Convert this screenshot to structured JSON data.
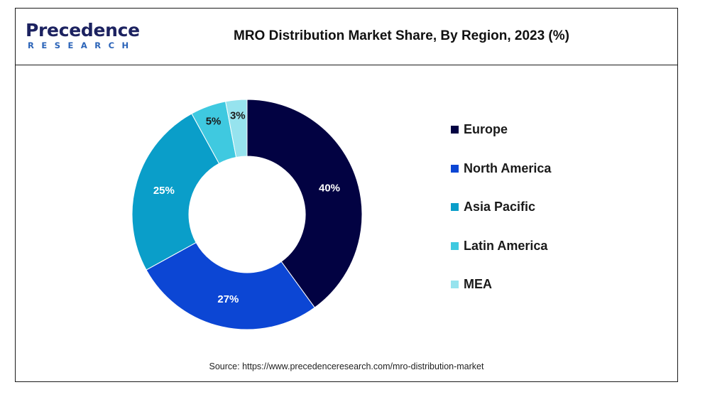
{
  "brand": {
    "logo_word": "Precedence",
    "logo_sub": "RESEARCH"
  },
  "chart_data": {
    "type": "pie",
    "title": "MRO Distribution Market Share, By Region, 2023 (%)",
    "categories": [
      "Europe",
      "North America",
      "Asia Pacific",
      "Latin America",
      "MEA"
    ],
    "values": [
      40,
      27,
      25,
      5,
      3
    ],
    "labels": [
      "40%",
      "27%",
      "25%",
      "5%",
      "3%"
    ],
    "colors": [
      "#020242",
      "#0c46d4",
      "#0a9ec9",
      "#3fc9e0",
      "#96e3ee"
    ],
    "label_colors": [
      "#ffffff",
      "#ffffff",
      "#ffffff",
      "#1a1a1a",
      "#1a1a1a"
    ],
    "donut": true,
    "legend_position": "right"
  },
  "source": "Source: https://www.precedenceresearch.com/mro-distribution-market"
}
